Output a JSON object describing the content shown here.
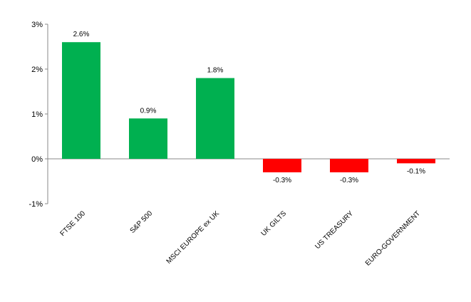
{
  "chart_data": {
    "type": "bar",
    "title": "",
    "xlabel": "",
    "ylabel": "",
    "categories": [
      "FTSE 100",
      "S&P 500",
      "MSCI EUROPE ex UK",
      "UK GILTS",
      "US TREASURY",
      "EURO-GOVERNMENT"
    ],
    "values": [
      2.6,
      0.9,
      1.8,
      -0.3,
      -0.3,
      -0.1
    ],
    "data_labels": [
      "2.6%",
      "0.9%",
      "1.8%",
      "-0.3%",
      "-0.3%",
      "-0.1%"
    ],
    "ylim": [
      -1,
      3
    ],
    "yticks": [
      3,
      2,
      1,
      0,
      -1
    ],
    "ytick_labels": [
      "3%",
      "2%",
      "1%",
      "0%",
      "-1%"
    ],
    "grid": false,
    "legend": "none",
    "colors": {
      "positive": "#00b050",
      "negative": "#ff0000",
      "axis": "#888888"
    }
  }
}
